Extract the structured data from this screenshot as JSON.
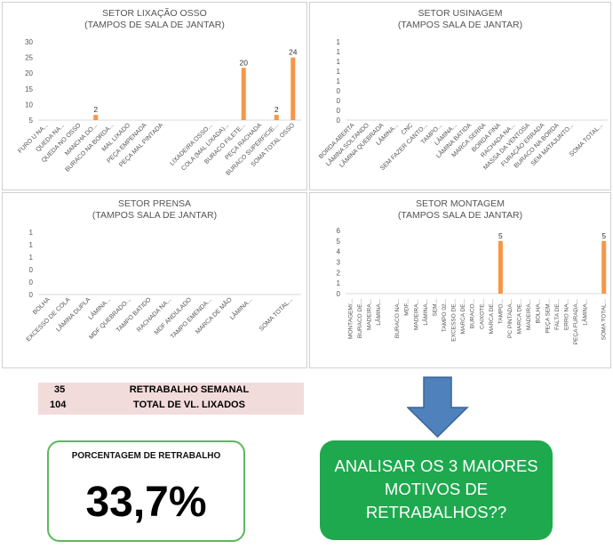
{
  "charts": [
    {
      "id": "osso",
      "title": "SETOR  LIXAÇÃO OSSO",
      "subtitle": "(TAMPOS DE SALA DE JANTAR)",
      "type": "bar",
      "yticks": [
        "30",
        "25",
        "20",
        "15",
        "10",
        "5"
      ],
      "ylim": [
        0,
        30
      ],
      "categories": [
        "FURO U NA...",
        "QUEDA NA...",
        "QUEDA NO OSSO",
        "MANCHA DO...",
        "BURACO NA BORDA...",
        "MAL LIXADO",
        "PEÇA EMPENADA",
        "PEÇA MAL PINTADA",
        "",
        "",
        "LIXADEIRA OSSO...",
        "COLA (MAL LIXADA)...",
        "BURACO FILETE...",
        "PEÇA RACHADA",
        "BURACO SUPERFICIE...",
        "SOMA TOTAL OSSO"
      ],
      "values": [
        null,
        null,
        null,
        2,
        null,
        null,
        null,
        null,
        null,
        null,
        null,
        null,
        20,
        null,
        2,
        24
      ],
      "labels": [
        "",
        "",
        "",
        "2",
        "",
        "",
        "",
        "",
        "",
        "",
        "",
        "",
        "20",
        "",
        "2",
        "24"
      ],
      "bar_color": "#f79646"
    },
    {
      "id": "usinagem",
      "title": "SETOR USINAGEM",
      "subtitle": "(TAMPOS SALA DE JANTAR)",
      "type": "bar",
      "yticks": [
        "1",
        "1",
        "1",
        "1",
        "1",
        "0",
        "0",
        "0",
        "0"
      ],
      "categories": [
        "BORDA ABERTA",
        "LÂMINA SOLTANDO",
        "LÂMINA QUEBRADA",
        "LÂMINA...",
        "CNC",
        "SEM FAZER CANTO...",
        "TAMPO...",
        "LÂMINA...",
        "LÂMINA BATIDA",
        "MARCA SERRA",
        "BORDA FINA",
        "RACHADA NA...",
        "MASSA DA VENTOSA",
        "FURAÇÃO ERRADA",
        "BURACO NA BORDA",
        "SEM MATAJUNTO...",
        "",
        "SOMA TOTAL..."
      ],
      "values": [],
      "bar_color": "#f79646"
    },
    {
      "id": "prensa",
      "title": "SETOR PRENSA",
      "subtitle": "(TAMPOS SALA DE JANTAR)",
      "type": "bar",
      "yticks": [
        "1",
        "1",
        "1",
        "0",
        "0",
        "0"
      ],
      "categories": [
        "BOLHA",
        "EXCESSO DE COLA",
        "LÂMINA DUPLA",
        "LÂMINA...",
        "MDF QUEBRADO...",
        "TAMPO BATIDO",
        "RACHADA NA...",
        "MDF ANDULADO",
        "TAMPO EMENDA...",
        "MARCA DE MÃO",
        "LÂMINA...",
        "",
        "SOMA TOTAL..."
      ],
      "values": [],
      "bar_color": "#f79646"
    },
    {
      "id": "montagem",
      "title": "SETOR MONTAGEM",
      "subtitle": "(TAMPOS SALA DE JANTAR)",
      "type": "bar",
      "yticks": [
        "6",
        "5",
        "4",
        "3",
        "2",
        "1",
        "0"
      ],
      "ylim": [
        0,
        6
      ],
      "categories": [
        "MONTAGEM/...",
        "BURACO DE...",
        "MADEIRA...",
        "LÂMINA...",
        "",
        "BURACO NA...",
        "MDF...",
        "MADEIRA...",
        "LÂMINA...",
        "SEM...",
        "TAMPO 02...",
        "EXCESSO DE...",
        "MARCA DE...",
        "BURACO...",
        "CAIXOTE...",
        "MARCA DE...",
        "TAMPO...",
        "PC PINTADA...",
        "MARCA DE...",
        "MADEIRA...",
        "BOLHA...",
        "PEÇA SEM...",
        "FALTA DE...",
        "ERRO NA...",
        "PEÇA FURADA...",
        "LÂMINA...",
        "",
        "SOMA TOTAL..."
      ],
      "values": [
        null,
        null,
        null,
        null,
        null,
        null,
        null,
        null,
        null,
        null,
        null,
        null,
        null,
        null,
        null,
        null,
        5,
        null,
        null,
        null,
        null,
        null,
        null,
        null,
        null,
        null,
        null,
        5
      ],
      "labels": [
        "",
        "",
        "",
        "",
        "",
        "",
        "",
        "",
        "",
        "",
        "",
        "",
        "",
        "",
        "",
        "",
        "5",
        "",
        "",
        "",
        "",
        "",
        "",
        "",
        "",
        "",
        "",
        "5"
      ],
      "bar_color": "#f79646"
    }
  ],
  "summary_table": {
    "rows": [
      {
        "value": "35",
        "label": "RETRABALHO SEMANAL"
      },
      {
        "value": "104",
        "label": "TOTAL DE VL. LIXADOS"
      }
    ]
  },
  "percentage_box": {
    "title": "PORCENTAGEM DE RETRABALHO",
    "value": "33,7%"
  },
  "action_box": {
    "text": "ANALISAR OS 3 MAIORES MOTIVOS DE RETRABALHOS??"
  },
  "colors": {
    "bar": "#f79646",
    "action_box": "#1ea94e",
    "percentage_border": "#5cb85c",
    "table_bg": "#f2dcdb",
    "arrow": "#4f81bd"
  }
}
